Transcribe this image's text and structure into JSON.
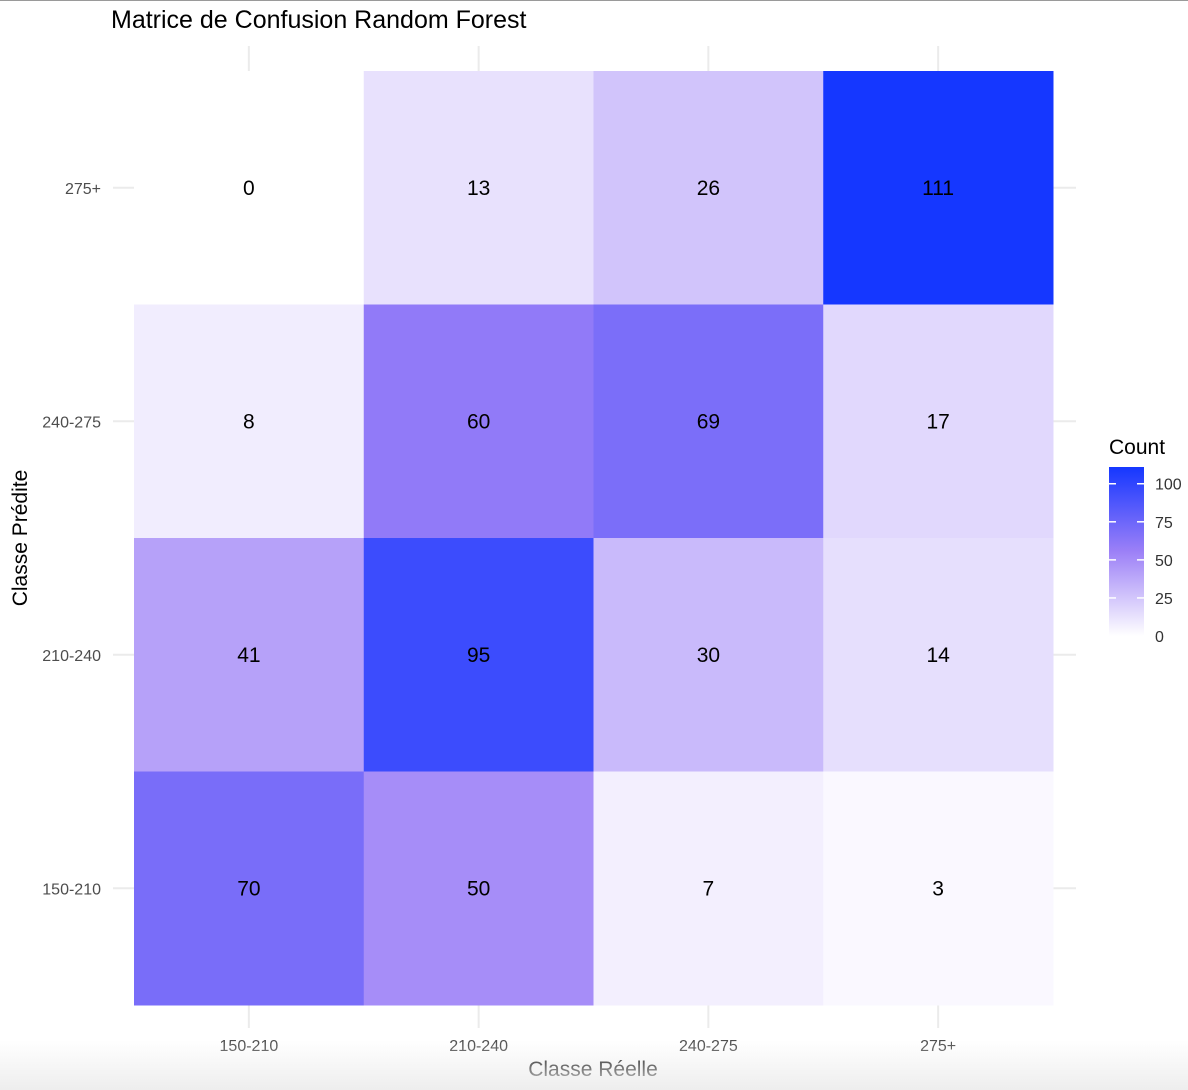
{
  "chart_data": {
    "type": "heatmap",
    "title": "Matrice de Confusion Random Forest",
    "xlabel": "Classe Réelle",
    "ylabel": "Classe Prédite",
    "x_categories": [
      "150-210",
      "210-240",
      "240-275",
      "275+"
    ],
    "y_categories": [
      "150-210",
      "210-240",
      "240-275",
      "275+"
    ],
    "cells": [
      {
        "x": "150-210",
        "y": "275+",
        "value": 0
      },
      {
        "x": "210-240",
        "y": "275+",
        "value": 13
      },
      {
        "x": "240-275",
        "y": "275+",
        "value": 26
      },
      {
        "x": "275+",
        "y": "275+",
        "value": 111
      },
      {
        "x": "150-210",
        "y": "240-275",
        "value": 8
      },
      {
        "x": "210-240",
        "y": "240-275",
        "value": 60
      },
      {
        "x": "240-275",
        "y": "240-275",
        "value": 69
      },
      {
        "x": "275+",
        "y": "240-275",
        "value": 17
      },
      {
        "x": "150-210",
        "y": "210-240",
        "value": 41
      },
      {
        "x": "210-240",
        "y": "210-240",
        "value": 95
      },
      {
        "x": "240-275",
        "y": "210-240",
        "value": 30
      },
      {
        "x": "275+",
        "y": "210-240",
        "value": 14
      },
      {
        "x": "150-210",
        "y": "150-210",
        "value": 70
      },
      {
        "x": "210-240",
        "y": "150-210",
        "value": 50
      },
      {
        "x": "240-275",
        "y": "150-210",
        "value": 7
      },
      {
        "x": "275+",
        "y": "150-210",
        "value": 3
      }
    ],
    "legend": {
      "title": "Count",
      "placement": "right",
      "ticks": [
        0,
        25,
        50,
        75,
        100
      ]
    },
    "color_scale": {
      "low": "#ffffff",
      "mid": "#9c80f7",
      "high": "#1537ff",
      "min": 0,
      "max": 111
    },
    "grid": true
  }
}
